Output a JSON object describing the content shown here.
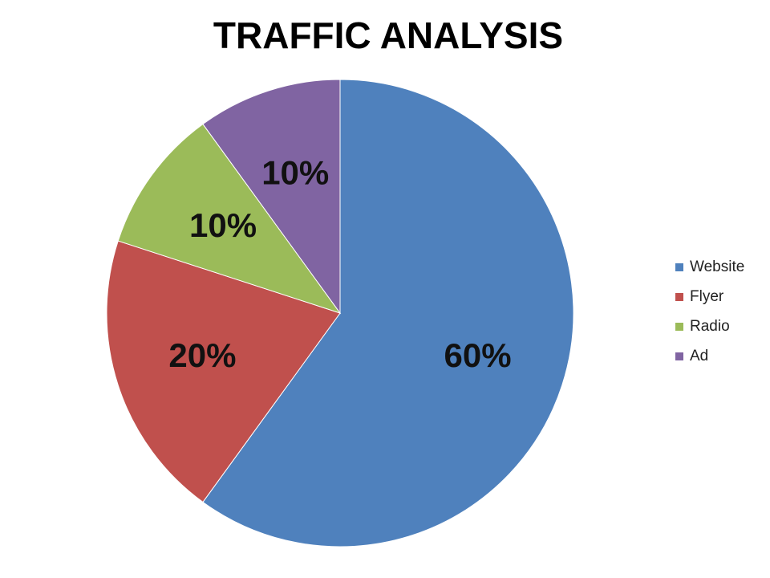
{
  "chart_data": {
    "type": "pie",
    "title": "TRAFFIC ANALYSIS",
    "categories": [
      "Website",
      "Flyer",
      "Radio",
      "Ad"
    ],
    "values": [
      60,
      20,
      10,
      10
    ],
    "value_labels": [
      "60%",
      "20%",
      "10%",
      "10%"
    ],
    "colors": [
      "#4f81bd",
      "#c0504d",
      "#9bbb59",
      "#8064a2"
    ],
    "legend": "right"
  }
}
